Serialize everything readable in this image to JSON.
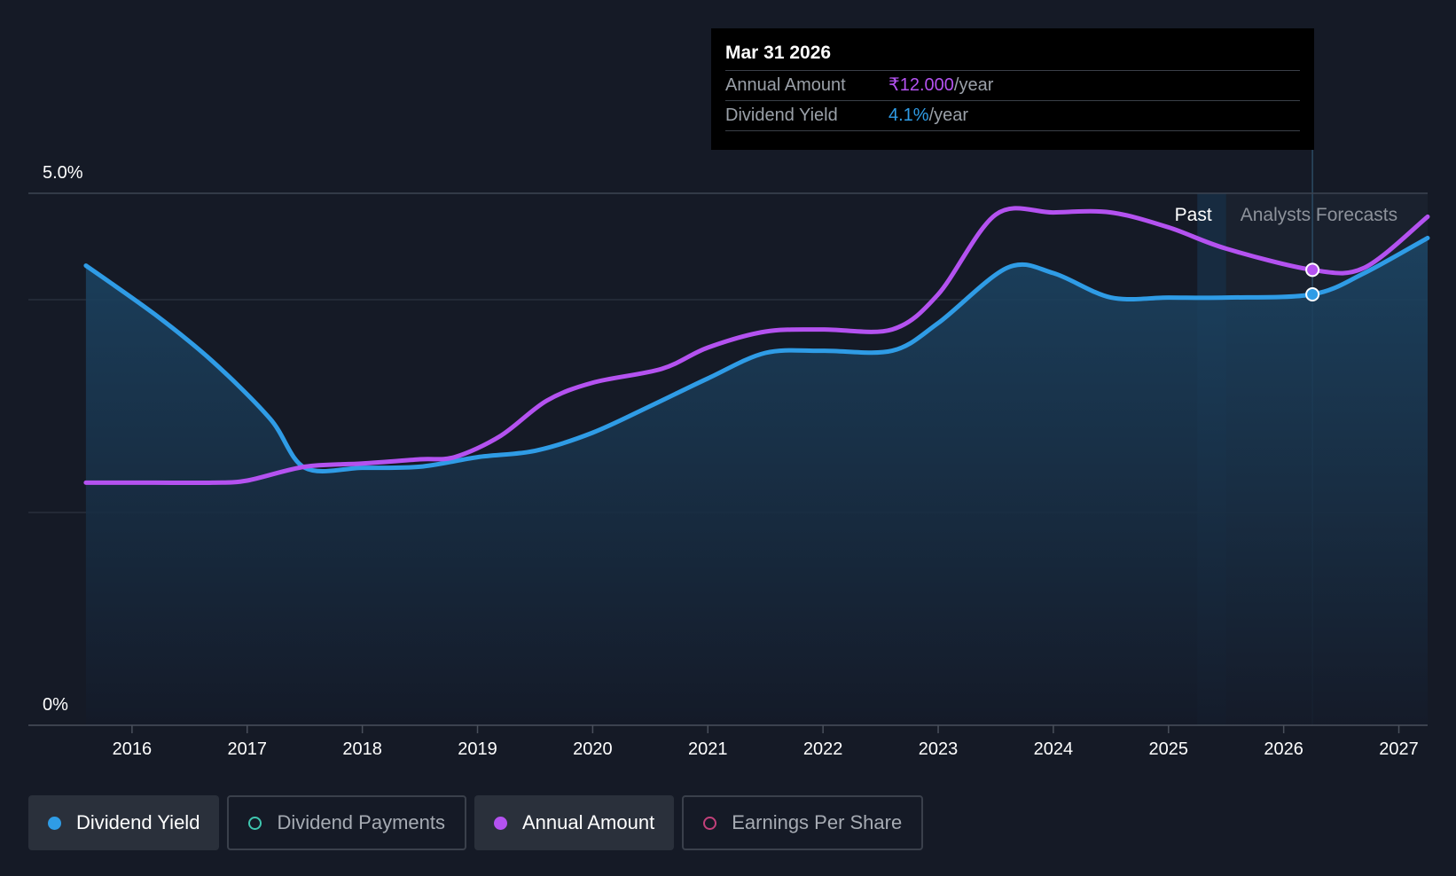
{
  "chart_data": {
    "type": "line",
    "title": "",
    "y_axis": {
      "label_top": "5.0%",
      "label_bottom": "0%",
      "range": [
        0,
        5.0
      ]
    },
    "x_axis": {
      "ticks": [
        "2016",
        "2017",
        "2018",
        "2019",
        "2020",
        "2021",
        "2022",
        "2023",
        "2024",
        "2025",
        "2026",
        "2027"
      ],
      "range": [
        2015.1,
        2027.25
      ]
    },
    "regions": {
      "past_label": "Past",
      "forecast_label": "Analysts Forecasts",
      "past_end": 2025.5
    },
    "series": [
      {
        "name": "Dividend Yield",
        "color": "#2f9ce6",
        "filled": true,
        "points": [
          [
            2015.6,
            4.32
          ],
          [
            2016.2,
            3.86
          ],
          [
            2016.7,
            3.42
          ],
          [
            2017.2,
            2.88
          ],
          [
            2017.5,
            2.42
          ],
          [
            2018.0,
            2.42
          ],
          [
            2018.5,
            2.43
          ],
          [
            2019.0,
            2.52
          ],
          [
            2019.5,
            2.58
          ],
          [
            2020.0,
            2.75
          ],
          [
            2020.5,
            3.0
          ],
          [
            2021.0,
            3.26
          ],
          [
            2021.5,
            3.5
          ],
          [
            2022.0,
            3.52
          ],
          [
            2022.6,
            3.52
          ],
          [
            2023.0,
            3.78
          ],
          [
            2023.6,
            4.3
          ],
          [
            2024.0,
            4.25
          ],
          [
            2024.5,
            4.02
          ],
          [
            2025.0,
            4.02
          ],
          [
            2025.5,
            4.02
          ],
          [
            2026.25,
            4.05
          ],
          [
            2026.7,
            4.25
          ],
          [
            2027.25,
            4.58
          ]
        ]
      },
      {
        "name": "Annual Amount",
        "color": "#b452f0",
        "filled": false,
        "points": [
          [
            2015.6,
            2.28
          ],
          [
            2016.2,
            2.28
          ],
          [
            2016.7,
            2.28
          ],
          [
            2017.0,
            2.3
          ],
          [
            2017.5,
            2.43
          ],
          [
            2018.0,
            2.46
          ],
          [
            2018.5,
            2.5
          ],
          [
            2018.8,
            2.52
          ],
          [
            2019.2,
            2.72
          ],
          [
            2019.6,
            3.05
          ],
          [
            2020.0,
            3.22
          ],
          [
            2020.6,
            3.35
          ],
          [
            2021.0,
            3.55
          ],
          [
            2021.5,
            3.7
          ],
          [
            2022.0,
            3.72
          ],
          [
            2022.6,
            3.72
          ],
          [
            2023.0,
            4.05
          ],
          [
            2023.5,
            4.8
          ],
          [
            2024.0,
            4.82
          ],
          [
            2024.5,
            4.82
          ],
          [
            2025.0,
            4.68
          ],
          [
            2025.5,
            4.48
          ],
          [
            2026.25,
            4.28
          ],
          [
            2026.7,
            4.3
          ],
          [
            2027.25,
            4.78
          ]
        ]
      }
    ],
    "highlight": {
      "x": 2026.25,
      "yield": 4.05,
      "amount": 4.28
    }
  },
  "tooltip": {
    "date": "Mar 31 2026",
    "rows": [
      {
        "label": "Annual Amount",
        "value": "₹12.000",
        "unit": "/year"
      },
      {
        "label": "Dividend Yield",
        "value": "4.1%",
        "unit": "/year"
      }
    ]
  },
  "legend": [
    {
      "label": "Dividend Yield",
      "color": "#2f9ce6",
      "active": true
    },
    {
      "label": "Dividend Payments",
      "color": "#3fc7b0",
      "active": false
    },
    {
      "label": "Annual Amount",
      "color": "#b452f0",
      "active": true
    },
    {
      "label": "Earnings Per Share",
      "color": "#c2407a",
      "active": false
    }
  ]
}
